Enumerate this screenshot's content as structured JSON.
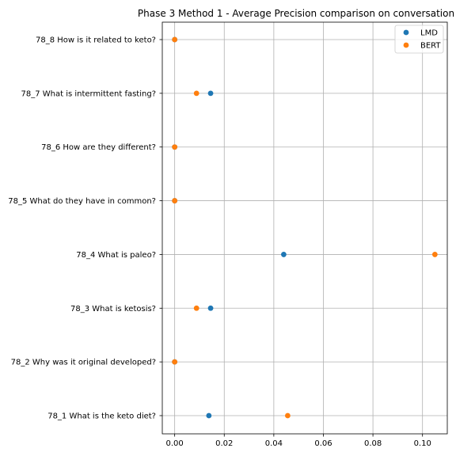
{
  "chart_data": {
    "type": "scatter",
    "title": "Phase 3 Method 1 - Average Precision comparison on conversation",
    "xlabel": "",
    "ylabel": "",
    "xlim": [
      -0.005,
      0.11
    ],
    "x_ticks": [
      "0.00",
      "0.02",
      "0.04",
      "0.06",
      "0.08",
      "0.10"
    ],
    "categories": [
      "78_1 What is the keto diet?",
      "78_2 Why was it original developed?",
      "78_3 What is ketosis?",
      "78_4 What is paleo?",
      "78_5 What do they have in common?",
      "78_6 How are they different?",
      "78_7 What is intermittent fasting?",
      "78_8 How is it related to keto?"
    ],
    "series": [
      {
        "name": "LMD",
        "color": "#1f77b4",
        "values": [
          0.0138,
          0.0,
          0.0145,
          0.044,
          0.0,
          0.0,
          0.0145,
          0.0
        ]
      },
      {
        "name": "BERT",
        "color": "#ff7f0e",
        "values": [
          0.0456,
          0.0,
          0.0088,
          0.105,
          0.0,
          0.0,
          0.0088,
          0.0
        ]
      }
    ],
    "grid": true,
    "legend_position": "top-right"
  }
}
